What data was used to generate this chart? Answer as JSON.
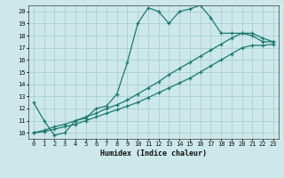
{
  "xlabel": "Humidex (Indice chaleur)",
  "xlim": [
    -0.5,
    23.5
  ],
  "ylim": [
    9.5,
    20.5
  ],
  "xticks": [
    0,
    1,
    2,
    3,
    4,
    5,
    6,
    7,
    8,
    9,
    10,
    11,
    12,
    13,
    14,
    15,
    16,
    17,
    18,
    19,
    20,
    21,
    22,
    23
  ],
  "yticks": [
    10,
    11,
    12,
    13,
    14,
    15,
    16,
    17,
    18,
    19,
    20
  ],
  "background_color": "#cde8ea",
  "grid_color": "#aacfd2",
  "line_color": "#1a7a6e",
  "line1_x": [
    0,
    1,
    2,
    3,
    4,
    5,
    6,
    7,
    8,
    9,
    10,
    11,
    12,
    13,
    14,
    15,
    16,
    17,
    18,
    19,
    20,
    21,
    22,
    23
  ],
  "line1_y": [
    12.5,
    11.0,
    9.8,
    10.0,
    11.0,
    11.2,
    12.0,
    12.2,
    13.2,
    15.8,
    19.0,
    20.3,
    20.0,
    19.0,
    20.0,
    20.2,
    20.5,
    19.5,
    18.2,
    18.2,
    18.2,
    18.0,
    17.5,
    17.5
  ],
  "line2_x": [
    0,
    1,
    2,
    3,
    4,
    5,
    6,
    7,
    8,
    9,
    10,
    11,
    12,
    13,
    14,
    15,
    16,
    17,
    18,
    19,
    20,
    21,
    22,
    23
  ],
  "line2_y": [
    10.0,
    10.2,
    10.5,
    10.7,
    11.0,
    11.3,
    11.6,
    12.0,
    12.3,
    12.7,
    13.2,
    13.7,
    14.2,
    14.8,
    15.3,
    15.8,
    16.3,
    16.8,
    17.3,
    17.8,
    18.2,
    18.2,
    17.8,
    17.5
  ],
  "line3_x": [
    0,
    1,
    2,
    3,
    4,
    5,
    6,
    7,
    8,
    9,
    10,
    11,
    12,
    13,
    14,
    15,
    16,
    17,
    18,
    19,
    20,
    21,
    22,
    23
  ],
  "line3_y": [
    10.0,
    10.1,
    10.3,
    10.5,
    10.7,
    11.0,
    11.3,
    11.6,
    11.9,
    12.2,
    12.5,
    12.9,
    13.3,
    13.7,
    14.1,
    14.5,
    15.0,
    15.5,
    16.0,
    16.5,
    17.0,
    17.2,
    17.2,
    17.3
  ]
}
